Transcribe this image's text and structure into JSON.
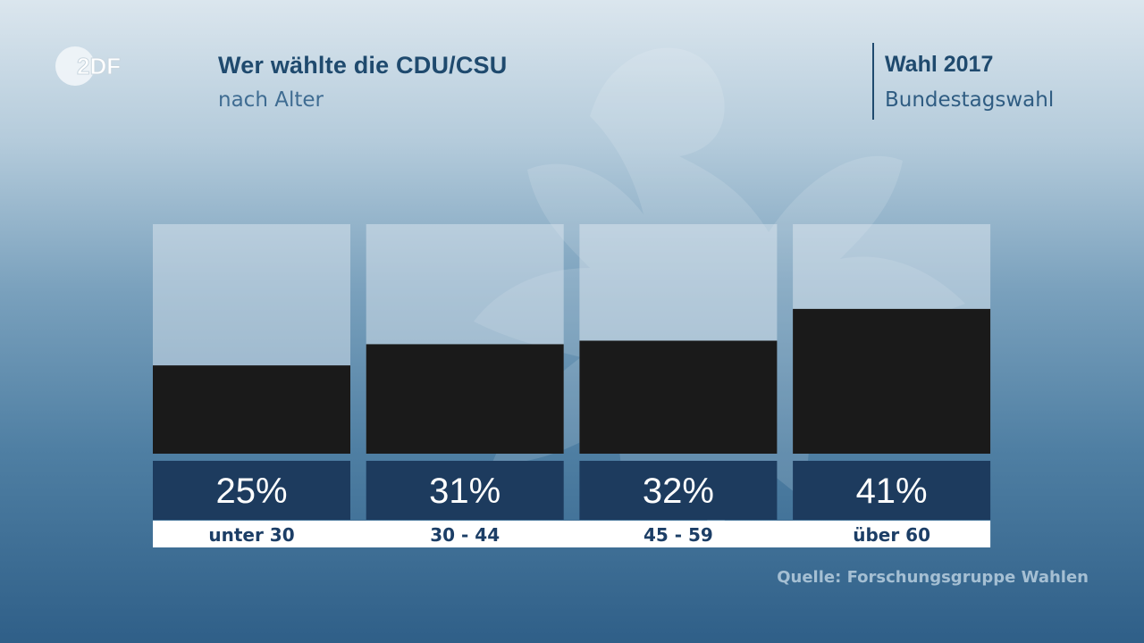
{
  "header": {
    "title": "Wer wählte die CDU/CSU",
    "subtitle": "nach Alter",
    "election_title": "Wahl 2017",
    "election_subtitle": "Bundestagswahl",
    "logo_text": "2DF"
  },
  "source": "Quelle: Forschungsgruppe Wahlen",
  "colors": {
    "bar": "#1a1a1a",
    "bar_background": "#e6eef4",
    "label_box": "#1d3b5e",
    "value_text": "#ffffff",
    "category_box": "#ffffff",
    "category_text": "#1c3e66"
  },
  "chart_data": {
    "type": "bar",
    "categories": [
      "unter 30",
      "30 - 44",
      "45 - 59",
      "über 60"
    ],
    "values": [
      25,
      31,
      32,
      41
    ],
    "value_labels": [
      "25%",
      "31%",
      "32%",
      "41%"
    ],
    "title": "Wer wählte die CDU/CSU",
    "subtitle": "nach Alter",
    "ylim": [
      0,
      65
    ],
    "grid": false,
    "legend": "none"
  }
}
